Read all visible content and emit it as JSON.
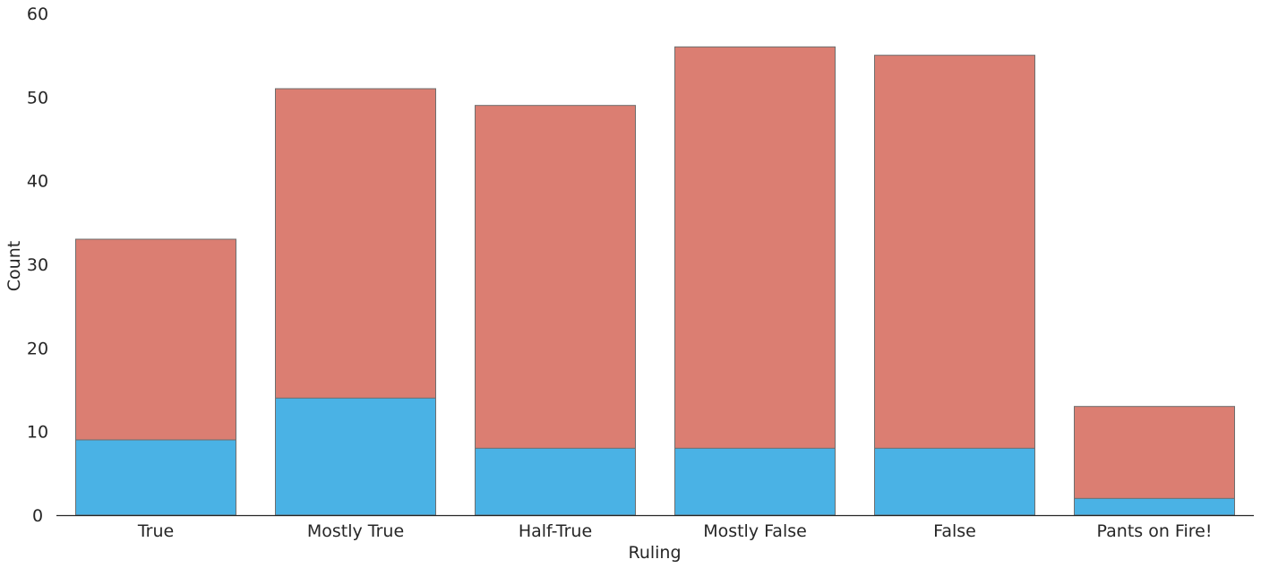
{
  "chart_data": {
    "type": "bar",
    "stacking": "overlaid",
    "categories": [
      "True",
      "Mostly True",
      "Half-True",
      "Mostly False",
      "False",
      "Pants on Fire!"
    ],
    "series": [
      {
        "values": [
          33,
          51,
          49,
          56,
          55,
          13
        ],
        "color": "#db7e72"
      },
      {
        "values": [
          9,
          14,
          8,
          8,
          8,
          2
        ],
        "color": "#4ab2e5"
      }
    ],
    "xlabel": "Ruling",
    "ylabel": "Count",
    "ylim": [
      0,
      60
    ],
    "yticks": [
      0,
      10,
      20,
      30,
      40,
      50,
      60
    ],
    "grid": false,
    "legend": "none",
    "bar_edge_color": "#6e6e6e",
    "axis_color": "#262626"
  }
}
